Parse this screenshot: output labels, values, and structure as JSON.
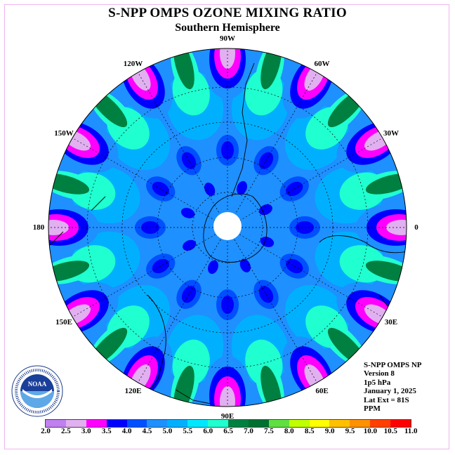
{
  "title": "S-NPP OMPS OZONE MIXING RATIO",
  "subtitle": "Southern Hemisphere",
  "longitude_labels": [
    "0",
    "30E",
    "60E",
    "90E",
    "120E",
    "150E",
    "180",
    "150W",
    "120W",
    "90W",
    "60W",
    "30W"
  ],
  "info": {
    "line1": "S-NPP OMPS NP",
    "line2": "Version 8",
    "line3": "1p5 hPa",
    "line4": "January 1, 2025",
    "line5": "Lat Ext = 81S",
    "line6": "PPM"
  },
  "colorbar": {
    "labels": [
      "2.0",
      "2.5",
      "3.0",
      "3.5",
      "4.0",
      "4.5",
      "5.0",
      "5.5",
      "6.0",
      "6.5",
      "7.0",
      "7.5",
      "8.0",
      "8.5",
      "9.0",
      "9.5",
      "10.0",
      "10.5",
      "11.0"
    ],
    "colors": [
      "#c080f0",
      "#e0b0f0",
      "#ff00ff",
      "#0000ff",
      "#0050ff",
      "#1e90ff",
      "#00b0ff",
      "#00e8ff",
      "#20ffd0",
      "#008040",
      "#007030",
      "#60e040",
      "#c0ff00",
      "#ffff00",
      "#ffc000",
      "#ff9000",
      "#ff4000",
      "#ff0000",
      "#805040"
    ]
  },
  "logo": {
    "text": "NOAA",
    "ring_text": "NATIONAL OCEANIC AND ATMOSPHERIC ADMINISTRATION · U.S. DEPARTMENT OF COMMERCE"
  }
}
